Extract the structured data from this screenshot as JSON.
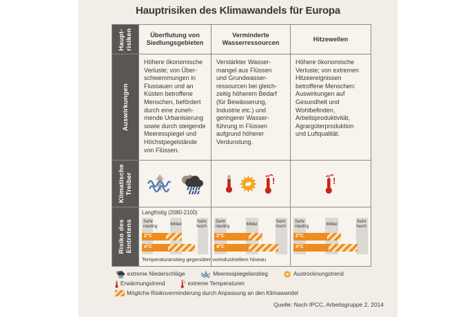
{
  "title": "Hauptrisiken des Klimawandels für Europa",
  "table": {
    "row_labels": {
      "risks": "Haupt-\nrisiken",
      "impacts": "Auswirkungen",
      "drivers": "Klimatische\nTreiber",
      "occurrence": "Risiko des\nEintretens"
    },
    "columns": [
      {
        "header": "Überflutung von\nSiedlungsgebieten",
        "impacts": "Höhere ökonomische\nVerluste; von Über-\nschwemmungen in\nFlussauen und an\nKüsten betroffene\nMenschen, befördert\ndurch eine zuneh-\nmende Urbanisierung\nsowie durch steigende\nMeeresspiegel und\nHöchstpegelstände\nvon Flüssen.",
        "driver_icons": [
          "sea-level-rise",
          "extreme-precipitation"
        ]
      },
      {
        "header": "Verminderte\nWasserressourcen",
        "impacts": "Verstärkter Wasser-\nmangel aus Flüssen\nund Grundwasser-\nressourcen bei gleich-\nzeitig höherem Bedarf\n(für Bewässerung,\nIndustrie etc.) und\ngeringerer Wasser-\nführung in Flüssen\naufgrund höherer\nVerdunstung.",
        "driver_icons": [
          "warming-trend",
          "drying-trend",
          "extreme-temperatures"
        ]
      },
      {
        "header": "Hitzewellen",
        "impacts": "Höhere ökonomische\nVerluste; von extremen\nHitzeereignissen\nbetroffene Menschen:\nAuswirkungen auf\nGesundheit und\nWohlbefinden,\nArbeitsproduktivität,\nAgrargüterproduktion\nund Luftqualität.",
        "driver_icons": [
          "extreme-temperatures"
        ]
      }
    ]
  },
  "chart_data": {
    "type": "bar",
    "title": "Langfristig (2080-2100)",
    "scale_labels": [
      "Sehr\nniedrig",
      "Mittel",
      "Sehr\nhoch"
    ],
    "bands_pct": [
      [
        0,
        17
      ],
      [
        43,
        60
      ],
      [
        84,
        100
      ]
    ],
    "footnote": "Temperaturanstieg gegenüber vorindustriellem Niveau",
    "bar_meaning": {
      "solid": "Risiko des Eintretens",
      "hatched": "Mögliche Risikoverminderung durch Anpassung an den Klimawandel"
    },
    "colors": {
      "solid": "#ef8c1f",
      "hatch_light": "#fbe3c1",
      "band": "#dcd8d3"
    },
    "charts": [
      {
        "name": "Überflutung von Siedlungsgebieten",
        "bars": [
          {
            "label": "2°C",
            "solid_pct": 36,
            "hatched_to_pct": 60
          },
          {
            "label": "4°C",
            "solid_pct": 40,
            "hatched_to_pct": 80
          }
        ]
      },
      {
        "name": "Verminderte Wasserressourcen",
        "bars": [
          {
            "label": "2°C",
            "solid_pct": 47,
            "hatched_to_pct": 66
          },
          {
            "label": "4°C",
            "solid_pct": 47,
            "hatched_to_pct": 88
          }
        ]
      },
      {
        "name": "Hitzewellen",
        "bars": [
          {
            "label": "2°C",
            "solid_pct": 45,
            "hatched_to_pct": 64
          },
          {
            "label": "4°C",
            "solid_pct": 47,
            "hatched_to_pct": 86
          }
        ]
      }
    ]
  },
  "legend": {
    "rows": [
      [
        {
          "icon": "extreme-precipitation-icon",
          "label": "extreme Niederschläge"
        },
        {
          "icon": "sea-level-rise-icon",
          "label": "Meeresspiegelanstieg"
        },
        {
          "icon": "drying-trend-icon",
          "label": "Austrocknungstrend"
        }
      ],
      [
        {
          "icon": "warming-trend-icon",
          "label": "Erwärmungstrend"
        },
        {
          "icon": "extreme-temperatures-icon",
          "label": "extreme Temperaturen"
        }
      ],
      [
        {
          "icon": "risk-reduction-hatch-swatch",
          "label": "Mögliche Risikoverminderung durch Anpassung an den Klimawandel"
        }
      ]
    ]
  },
  "source": "Quelle: Nach IPCC, Arbeitsgruppe 2, 2014"
}
